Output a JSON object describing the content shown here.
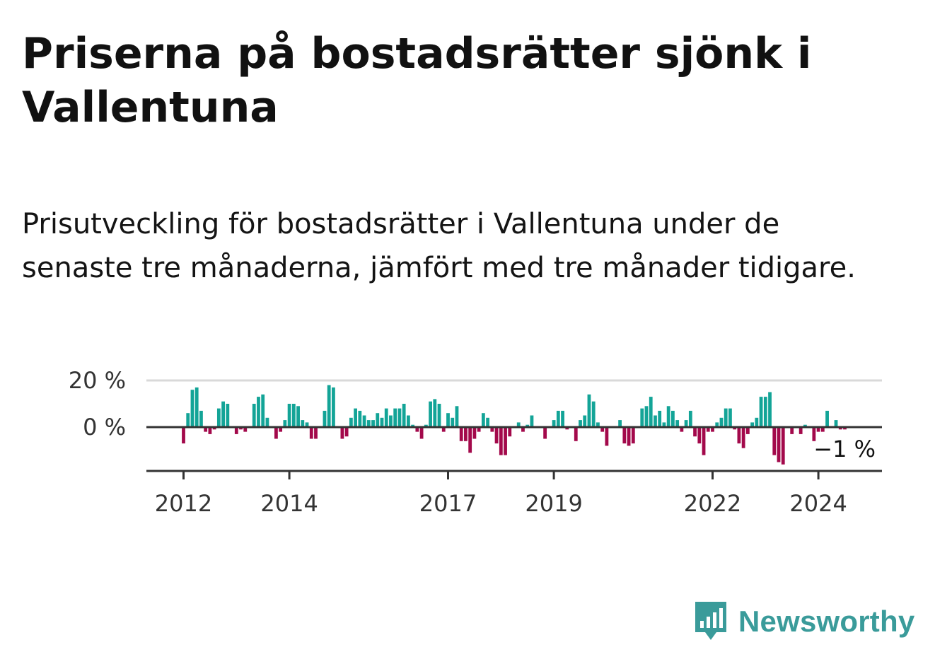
{
  "title": "Priserna på bostadsrätter sjönk i Vallentuna",
  "subtitle": "Prisutveckling för bostadsrätter i Vallentuna under de senaste tre månaderna, jämfört med tre månader tidigare.",
  "colors": {
    "positive": "#13a497",
    "negative": "#a3094b",
    "grid": "#d9d9d9",
    "axis": "#333333",
    "brand": "#3a9b9a"
  },
  "logo": {
    "text": "Newsworthy",
    "icon": "chart-bubble-icon"
  },
  "chart_data": {
    "type": "bar",
    "ylabel": "",
    "ylim": [
      -20,
      20
    ],
    "yticks": [
      {
        "value": 20,
        "label": "20 %"
      },
      {
        "value": 0,
        "label": "0 %"
      }
    ],
    "xticks": [
      {
        "year": 2012,
        "label": "2012"
      },
      {
        "year": 2014,
        "label": "2014"
      },
      {
        "year": 2017,
        "label": "2017"
      },
      {
        "year": 2019,
        "label": "2019"
      },
      {
        "year": 2022,
        "label": "2022"
      },
      {
        "year": 2024,
        "label": "2024"
      }
    ],
    "start": "2012-01",
    "annotation": {
      "label": "−1 %",
      "value": -1
    },
    "values": [
      -7,
      6,
      16,
      17,
      7,
      -2,
      -3,
      -1,
      8,
      11,
      10,
      0,
      -3,
      -1,
      -2,
      0,
      10,
      13,
      14,
      4,
      0,
      -5,
      -2,
      3,
      10,
      10,
      9,
      3,
      2,
      -5,
      -5,
      0,
      7,
      18,
      17,
      0,
      -5,
      -4,
      4,
      8,
      7,
      5,
      3,
      3,
      6,
      4,
      8,
      5,
      8,
      8,
      10,
      5,
      1,
      -2,
      -5,
      1,
      11,
      12,
      10,
      -2,
      6,
      4,
      9,
      -6,
      -6,
      -11,
      -5,
      -2,
      6,
      4,
      -2,
      -7,
      -12,
      -12,
      -4,
      0,
      2,
      -2,
      1,
      5,
      0,
      0,
      -5,
      0,
      3,
      7,
      7,
      -1,
      0,
      -6,
      3,
      5,
      14,
      11,
      2,
      -2,
      -8,
      0,
      0,
      3,
      -7,
      -8,
      -7,
      0,
      8,
      9,
      13,
      5,
      7,
      2,
      9,
      7,
      3,
      -2,
      3,
      7,
      -4,
      -7,
      -12,
      -2,
      -2,
      2,
      4,
      8,
      8,
      -1,
      -7,
      -9,
      -3,
      2,
      4,
      13,
      13,
      15,
      -12,
      -15,
      -16,
      0,
      -3,
      0,
      -3,
      1,
      0,
      -6,
      -2,
      -2,
      7,
      0,
      3,
      -1,
      -1
    ]
  }
}
